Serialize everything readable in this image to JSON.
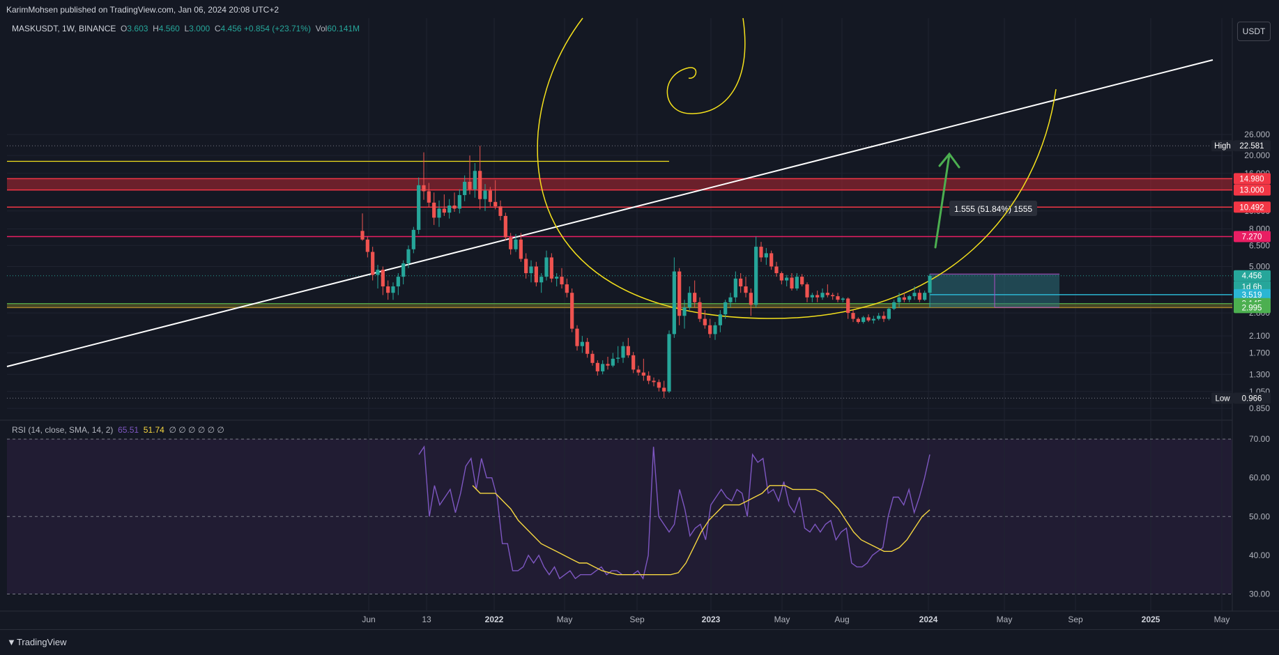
{
  "header": {
    "published": "KarimMohsen published on TradingView.com, Jan 06, 2024 20:08 UTC+2"
  },
  "legend": {
    "symbol": "MASKUSDT, 1W, BINANCE",
    "open_label": "O",
    "open": "3.603",
    "high_label": "H",
    "high": "4.560",
    "low_label": "L",
    "low": "3.000",
    "close_label": "C",
    "close": "4.456",
    "change": "+0.854 (+23.71%)",
    "vol_label": "Vol",
    "vol": "60.141M"
  },
  "currency_button": "USDT",
  "rsi_legend": {
    "title": "RSI (14, close, SMA, 14, 2)",
    "rsi": "65.51",
    "sma": "51.74",
    "extra": "∅ ∅ ∅ ∅ ∅ ∅"
  },
  "footer": {
    "brand": "TradingView"
  },
  "colors": {
    "up": "#26a69a",
    "down": "#ef5350",
    "zone": "#b22833",
    "support": "#4caf50",
    "rsi": "#7e57c2",
    "rsi_ma": "#f6d740",
    "trend": "#ffffff",
    "spiral": "#f5e11c"
  },
  "chart_data": {
    "type": "candlestick",
    "scale": "log",
    "price_axis_ticks": [
      "26.000",
      "20.000",
      "16.000",
      "10.000",
      "8.000",
      "6.500",
      "5.000",
      "2.800",
      "2.100",
      "1.700",
      "1.300",
      "1.050",
      "0.850"
    ],
    "time_axis_labels": [
      "Jun",
      "13",
      "2022",
      "May",
      "Sep",
      "2023",
      "May",
      "Aug",
      "2024",
      "May",
      "Sep",
      "2025",
      "May"
    ],
    "price_labels": [
      {
        "text": "High",
        "value": "22.581"
      },
      {
        "value": "14.980"
      },
      {
        "value": "13.000"
      },
      {
        "value": "10.492"
      },
      {
        "value": "7.270"
      },
      {
        "value": "4.456",
        "sub": "1d 6h"
      },
      {
        "value": "3.519"
      },
      {
        "value": "3.145"
      },
      {
        "value": "2.995"
      },
      {
        "text": "Low",
        "value": "0.966"
      }
    ],
    "measure_label": "1.555 (51.84%) 1555",
    "candles": [
      [
        7.8,
        9.7,
        6.9,
        7.0
      ],
      [
        7.0,
        7.3,
        5.6,
        6.0
      ],
      [
        6.0,
        6.4,
        4.2,
        4.5
      ],
      [
        4.5,
        5.1,
        3.8,
        4.8
      ],
      [
        4.8,
        5.0,
        3.5,
        3.9
      ],
      [
        3.9,
        4.2,
        3.3,
        3.6
      ],
      [
        3.6,
        4.1,
        3.3,
        3.9
      ],
      [
        3.9,
        4.6,
        3.5,
        4.4
      ],
      [
        4.4,
        5.4,
        4.0,
        5.2
      ],
      [
        5.2,
        6.5,
        4.9,
        6.2
      ],
      [
        6.2,
        8.2,
        5.9,
        7.9
      ],
      [
        7.9,
        15.2,
        7.5,
        13.8
      ],
      [
        13.8,
        20.8,
        11.5,
        12.8
      ],
      [
        12.8,
        14.2,
        10.5,
        11.1
      ],
      [
        11.1,
        12.6,
        8.4,
        9.2
      ],
      [
        9.2,
        11.4,
        8.2,
        10.3
      ],
      [
        10.3,
        12.3,
        9.4,
        9.8
      ],
      [
        9.8,
        11.6,
        9.1,
        10.7
      ],
      [
        10.7,
        12.6,
        9.9,
        10.3
      ],
      [
        10.3,
        13.1,
        9.7,
        12.2
      ],
      [
        12.2,
        15.6,
        11.3,
        14.4
      ],
      [
        14.4,
        20.0,
        12.3,
        13.1
      ],
      [
        13.1,
        18.2,
        11.8,
        16.5
      ],
      [
        16.5,
        22.58,
        10.2,
        11.6
      ],
      [
        11.6,
        14.0,
        10.0,
        12.9
      ],
      [
        12.9,
        13.5,
        10.6,
        11.2
      ],
      [
        11.2,
        14.7,
        10.2,
        10.6
      ],
      [
        10.6,
        11.4,
        8.9,
        9.4
      ],
      [
        9.4,
        9.8,
        6.9,
        7.2
      ],
      [
        7.2,
        7.6,
        5.8,
        6.2
      ],
      [
        6.2,
        7.5,
        6.0,
        7.0
      ],
      [
        7.0,
        7.6,
        5.3,
        5.5
      ],
      [
        5.5,
        5.9,
        4.3,
        4.6
      ],
      [
        4.6,
        5.4,
        4.1,
        5.0
      ],
      [
        5.0,
        5.3,
        3.9,
        4.1
      ],
      [
        4.1,
        4.6,
        3.6,
        4.4
      ],
      [
        4.4,
        6.1,
        4.2,
        5.6
      ],
      [
        5.6,
        5.9,
        4.1,
        4.3
      ],
      [
        4.3,
        4.6,
        3.9,
        4.4
      ],
      [
        4.4,
        4.9,
        3.8,
        4.0
      ],
      [
        4.0,
        4.3,
        3.4,
        3.6
      ],
      [
        3.6,
        3.8,
        2.2,
        2.3
      ],
      [
        2.3,
        2.4,
        1.75,
        1.85
      ],
      [
        1.85,
        2.1,
        1.7,
        1.95
      ],
      [
        1.95,
        2.05,
        1.6,
        1.68
      ],
      [
        1.68,
        1.75,
        1.45,
        1.5
      ],
      [
        1.5,
        1.55,
        1.28,
        1.35
      ],
      [
        1.35,
        1.55,
        1.3,
        1.48
      ],
      [
        1.48,
        1.62,
        1.38,
        1.45
      ],
      [
        1.45,
        1.7,
        1.42,
        1.58
      ],
      [
        1.58,
        1.85,
        1.5,
        1.6
      ],
      [
        1.6,
        1.95,
        1.5,
        1.85
      ],
      [
        1.85,
        2.05,
        1.6,
        1.65
      ],
      [
        1.65,
        1.72,
        1.32,
        1.38
      ],
      [
        1.38,
        1.45,
        1.28,
        1.33
      ],
      [
        1.33,
        1.58,
        1.2,
        1.28
      ],
      [
        1.28,
        1.35,
        1.15,
        1.2
      ],
      [
        1.2,
        1.25,
        1.12,
        1.18
      ],
      [
        1.18,
        1.22,
        1.05,
        1.1
      ],
      [
        1.1,
        1.2,
        0.966,
        1.05
      ],
      [
        1.05,
        2.25,
        1.03,
        2.15
      ],
      [
        2.15,
        5.6,
        2.05,
        4.7
      ],
      [
        4.7,
        4.9,
        2.4,
        2.7
      ],
      [
        2.7,
        3.3,
        2.3,
        3.0
      ],
      [
        3.0,
        3.9,
        2.9,
        3.6
      ],
      [
        3.6,
        4.2,
        3.0,
        3.2
      ],
      [
        3.2,
        3.4,
        2.5,
        2.6
      ],
      [
        2.6,
        2.9,
        2.3,
        2.4
      ],
      [
        2.4,
        2.6,
        2.05,
        2.15
      ],
      [
        2.15,
        2.5,
        2.0,
        2.4
      ],
      [
        2.4,
        2.9,
        2.2,
        2.75
      ],
      [
        2.75,
        3.3,
        2.6,
        3.2
      ],
      [
        3.2,
        3.6,
        3.0,
        3.4
      ],
      [
        3.4,
        4.7,
        3.2,
        4.3
      ],
      [
        4.3,
        4.6,
        3.6,
        3.9
      ],
      [
        3.9,
        4.4,
        3.4,
        3.6
      ],
      [
        3.6,
        3.8,
        2.7,
        3.1
      ],
      [
        3.1,
        7.27,
        3.0,
        6.4
      ],
      [
        6.4,
        6.8,
        5.3,
        5.6
      ],
      [
        5.6,
        6.3,
        5.1,
        5.9
      ],
      [
        5.9,
        6.1,
        4.8,
        5.0
      ],
      [
        5.0,
        5.3,
        4.4,
        4.6
      ],
      [
        4.6,
        4.7,
        4.0,
        4.2
      ],
      [
        4.2,
        4.5,
        3.9,
        4.35
      ],
      [
        4.35,
        4.6,
        3.7,
        3.8
      ],
      [
        3.8,
        4.6,
        3.7,
        4.4
      ],
      [
        4.4,
        4.55,
        3.9,
        4.0
      ],
      [
        4.0,
        4.1,
        3.2,
        3.4
      ],
      [
        3.4,
        3.6,
        3.2,
        3.5
      ],
      [
        3.5,
        3.7,
        3.2,
        3.4
      ],
      [
        3.4,
        3.8,
        3.3,
        3.6
      ],
      [
        3.6,
        4.0,
        3.4,
        3.5
      ],
      [
        3.5,
        3.6,
        3.3,
        3.45
      ],
      [
        3.45,
        3.6,
        3.2,
        3.3
      ],
      [
        3.3,
        3.4,
        3.2,
        3.35
      ],
      [
        3.35,
        3.4,
        2.6,
        2.8
      ],
      [
        2.8,
        2.9,
        2.5,
        2.6
      ],
      [
        2.6,
        2.65,
        2.45,
        2.5
      ],
      [
        2.5,
        2.7,
        2.45,
        2.65
      ],
      [
        2.65,
        2.75,
        2.5,
        2.55
      ],
      [
        2.55,
        2.7,
        2.45,
        2.6
      ],
      [
        2.6,
        2.8,
        2.55,
        2.7
      ],
      [
        2.7,
        2.85,
        2.5,
        2.6
      ],
      [
        2.6,
        3.0,
        2.55,
        2.95
      ],
      [
        2.95,
        3.3,
        2.9,
        3.2
      ],
      [
        3.2,
        3.6,
        3.0,
        3.4
      ],
      [
        3.4,
        3.6,
        3.2,
        3.3
      ],
      [
        3.3,
        3.5,
        3.2,
        3.45
      ],
      [
        3.45,
        3.9,
        3.3,
        3.6
      ],
      [
        3.6,
        3.75,
        3.2,
        3.3
      ],
      [
        3.3,
        3.7,
        3.25,
        3.6
      ],
      [
        3.603,
        4.56,
        3.0,
        4.456
      ]
    ],
    "rsi": [
      66,
      68,
      50,
      58,
      53,
      55,
      57,
      51,
      56,
      63,
      65,
      57,
      65,
      60,
      60,
      55,
      43,
      43,
      36,
      36,
      37,
      40,
      38,
      40,
      37,
      35,
      37,
      34,
      35,
      36,
      34,
      35,
      35,
      35,
      36,
      37,
      35,
      36,
      36,
      35,
      35,
      35,
      36,
      34,
      40,
      68,
      50,
      48,
      46,
      48,
      57,
      52,
      45,
      47,
      48,
      44,
      53,
      55,
      57,
      55,
      54,
      57,
      56,
      50,
      66,
      64,
      65,
      56,
      57,
      54,
      59,
      53,
      51,
      55,
      47,
      46,
      48,
      46,
      48,
      49,
      44,
      46,
      47,
      38,
      37,
      37,
      38,
      40,
      41,
      42,
      50,
      55,
      55,
      53,
      57,
      51,
      55,
      60,
      66
    ],
    "rsi_sma": [
      58,
      56,
      56,
      56,
      54,
      52,
      49,
      47,
      45,
      43,
      42,
      41,
      40,
      39,
      38,
      38,
      37,
      36,
      35.5,
      35,
      35,
      35,
      35,
      35,
      35,
      35,
      35,
      35.5,
      38,
      42,
      46,
      49,
      51,
      53,
      53,
      53,
      54,
      55,
      56,
      58,
      58,
      58,
      57,
      57,
      57,
      57,
      56,
      54,
      52,
      49,
      46,
      44,
      43,
      42,
      41,
      41,
      42,
      44,
      47,
      50,
      51.74
    ],
    "levels": [
      14.98,
      13.0,
      10.492,
      7.27
    ],
    "high_value": 22.581,
    "low_value": 0.966,
    "rsi_axis_ticks": [
      "70.00",
      "60.00",
      "50.00",
      "40.00",
      "30.00"
    ]
  }
}
